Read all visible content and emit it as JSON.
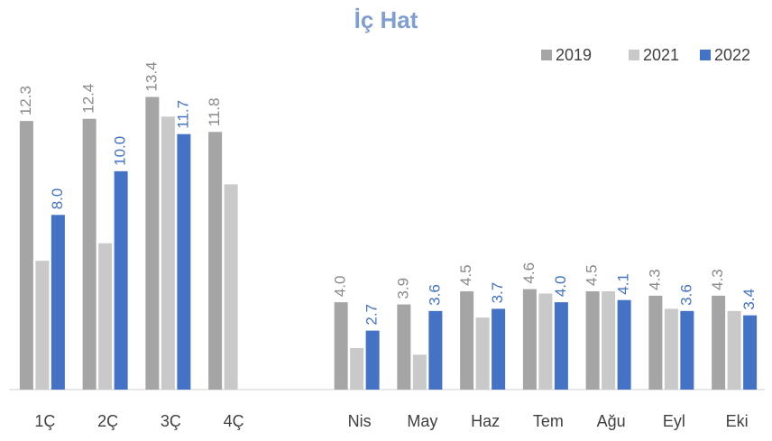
{
  "chart_data": {
    "type": "bar",
    "title": "İç Hat",
    "categories": [
      "1Ç",
      "2Ç",
      "3Ç",
      "4Ç",
      null,
      "Nis",
      "May",
      "Haz",
      "Tem",
      "Ağu",
      "Eyl",
      "Eki"
    ],
    "series": [
      {
        "name": "2019",
        "color": "#a5a5a5",
        "values": [
          12.3,
          12.4,
          13.4,
          11.8,
          null,
          4.0,
          3.9,
          4.5,
          4.6,
          4.5,
          4.3,
          4.3
        ],
        "value_labels": [
          "12.3",
          "12.4",
          "13.4",
          "11.8",
          null,
          "4.0",
          "3.9",
          "4.5",
          "4.6",
          "4.5",
          "4.3",
          "4.3"
        ]
      },
      {
        "name": "2021",
        "color": "#c9c9c9",
        "values": [
          5.9,
          6.7,
          12.5,
          9.4,
          null,
          1.9,
          1.6,
          3.3,
          4.4,
          4.5,
          3.7,
          3.6
        ]
      },
      {
        "name": "2022",
        "color": "#4472c4",
        "values": [
          8.0,
          10.0,
          11.7,
          null,
          null,
          2.7,
          3.6,
          3.7,
          4.0,
          4.1,
          3.6,
          3.4
        ],
        "value_labels": [
          "8.0",
          "10.0",
          "11.7",
          null,
          null,
          "2.7",
          "3.6",
          "3.7",
          "4.0",
          "4.1",
          "3.6",
          "3.4"
        ]
      }
    ],
    "ylim": [
      0,
      14
    ],
    "legend": "top-right"
  }
}
